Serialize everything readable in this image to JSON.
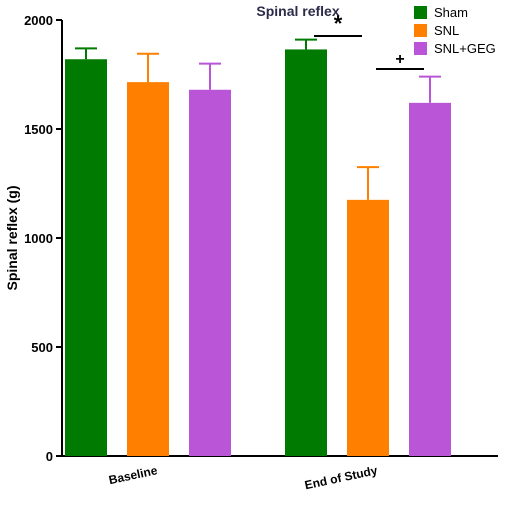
{
  "chart_data": {
    "type": "bar",
    "title": "Spinal reflex",
    "ylabel": "Spinal reflex (g)",
    "xlabel": "",
    "ylim": [
      0,
      2000
    ],
    "yticks": [
      0,
      500,
      1000,
      1500,
      2000
    ],
    "categories": [
      "Baseline",
      "End of Study"
    ],
    "series": [
      {
        "name": "Sham",
        "color": "#007a00",
        "values": [
          1820,
          1865
        ],
        "errors": [
          50,
          45
        ]
      },
      {
        "name": "SNL",
        "color": "#ff8000",
        "values": [
          1715,
          1175
        ],
        "errors": [
          130,
          150
        ]
      },
      {
        "name": "SNL+GEG",
        "color": "#b955d6",
        "values": [
          1680,
          1620
        ],
        "errors": [
          120,
          120
        ]
      }
    ],
    "legend_position": "top-right",
    "grid": false,
    "annotations": [
      {
        "text": "*",
        "between": [
          "Sham",
          "SNL"
        ],
        "category": "End of Study"
      },
      {
        "text": "+",
        "between": [
          "SNL",
          "SNL+GEG"
        ],
        "category": "End of Study"
      }
    ]
  }
}
